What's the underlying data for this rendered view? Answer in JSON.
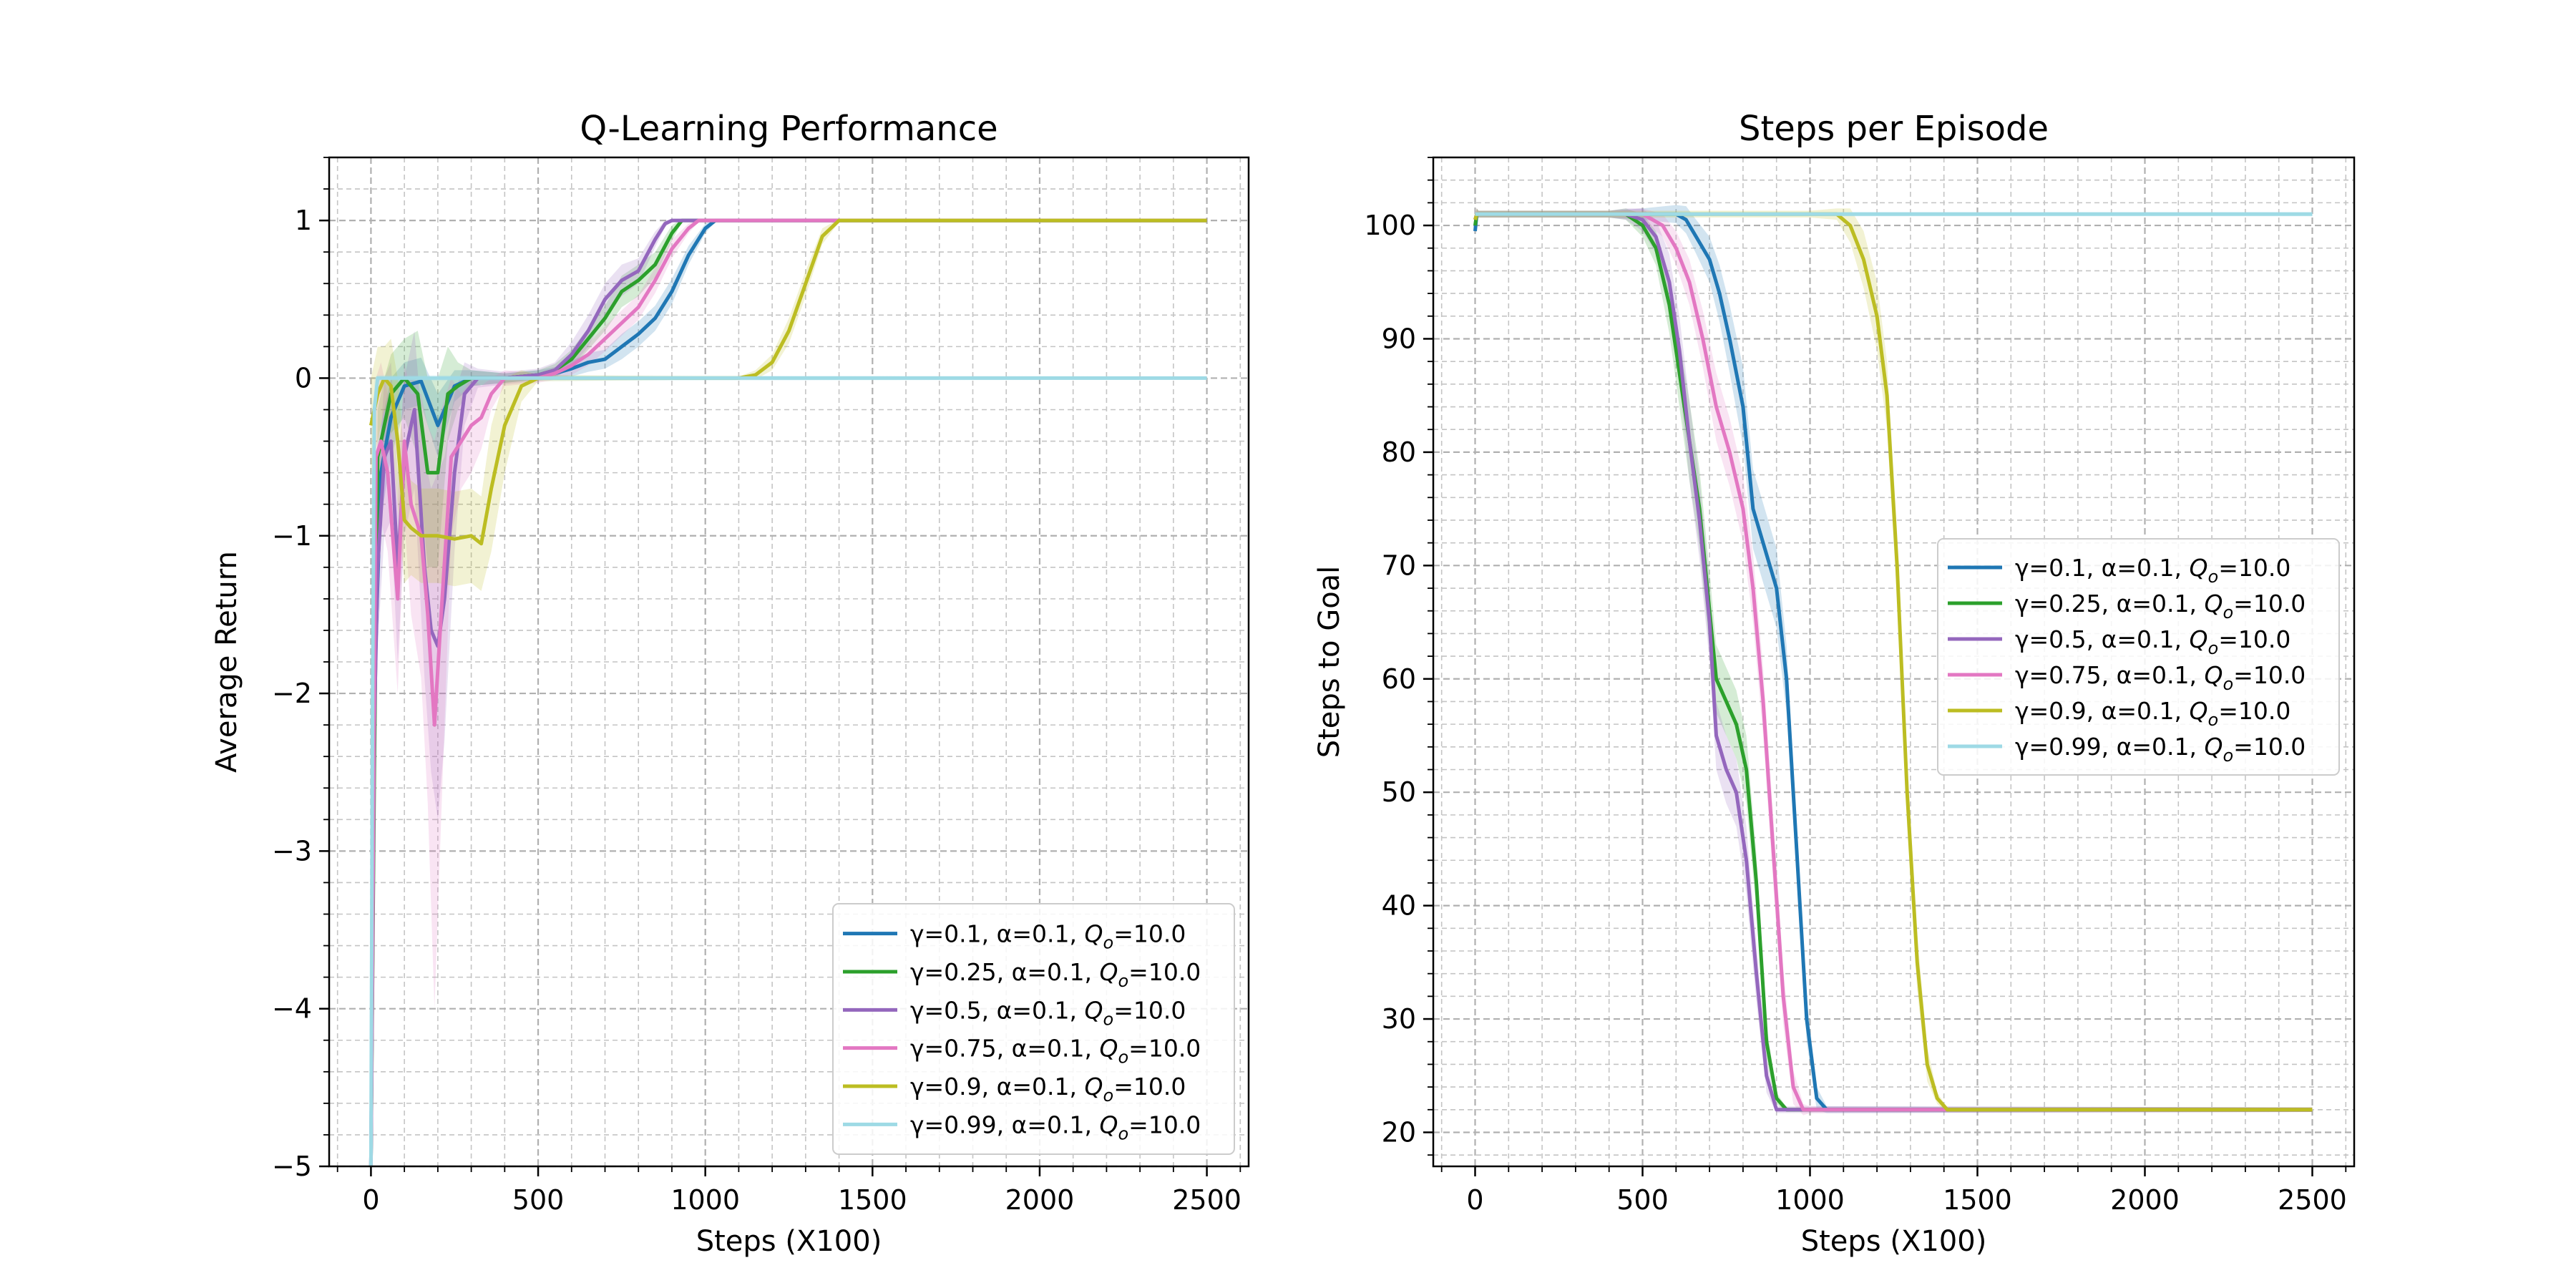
{
  "chart_data": [
    {
      "type": "line",
      "title": "Q-Learning Performance",
      "xlabel": "Steps (X100)",
      "ylabel": "Average Return",
      "xlim": [
        -125,
        2625
      ],
      "ylim": [
        -5,
        1.4
      ],
      "xticks": [
        0,
        500,
        1000,
        1500,
        2000,
        2500
      ],
      "xtick_labels": [
        "0",
        "500",
        "1000",
        "1500",
        "2000",
        "2500"
      ],
      "yticks": [
        -5,
        -4,
        -3,
        -2,
        -1,
        0,
        1
      ],
      "ytick_labels": [
        "−5",
        "−4",
        "−3",
        "−2",
        "−1",
        "0",
        "1"
      ],
      "grid": true,
      "legend_position": "lower-right",
      "series": [
        {
          "name": "γ=0.1, α=0.1, Q_o=10.0",
          "label_prefix": "γ=0.1, α=0.1, ",
          "label_q": "Q",
          "label_sub": "o",
          "label_suffix": "=10.0",
          "color": "#1f77b4",
          "x": [
            0,
            10,
            30,
            60,
            100,
            150,
            200,
            250,
            300,
            400,
            500,
            550,
            600,
            650,
            700,
            750,
            800,
            850,
            900,
            950,
            1000,
            1030,
            2500
          ],
          "y": [
            -5,
            -2,
            -0.6,
            -0.25,
            -0.05,
            -0.02,
            -0.3,
            -0.05,
            0,
            0,
            0.02,
            0.03,
            0.06,
            0.1,
            0.12,
            0.2,
            0.28,
            0.38,
            0.55,
            0.78,
            0.95,
            1,
            1
          ],
          "band": [
            0.15,
            0.15,
            0.3,
            0.25,
            0.15,
            0.15,
            0.2,
            0.1,
            0.05,
            0.03,
            0.03,
            0.04,
            0.05,
            0.06,
            0.06,
            0.08,
            0.08,
            0.08,
            0.08,
            0.06,
            0.03,
            0.01,
            0.01
          ]
        },
        {
          "name": "γ=0.25, α=0.1, Q_o=10.0",
          "label_prefix": "γ=0.25, α=0.1, ",
          "label_q": "Q",
          "label_sub": "o",
          "label_suffix": "=10.0",
          "color": "#2ca02c",
          "x": [
            0,
            10,
            20,
            40,
            60,
            100,
            140,
            170,
            200,
            230,
            260,
            300,
            400,
            500,
            550,
            600,
            650,
            700,
            750,
            800,
            850,
            900,
            930,
            2500
          ],
          "y": [
            -5,
            -2.5,
            -0.5,
            -0.3,
            -0.1,
            0,
            -0.1,
            -0.6,
            -0.6,
            -0.1,
            -0.05,
            0,
            0,
            0.02,
            0.05,
            0.12,
            0.25,
            0.38,
            0.55,
            0.62,
            0.72,
            0.92,
            1,
            1
          ],
          "band": [
            0.2,
            0.3,
            0.3,
            0.3,
            0.25,
            0.25,
            0.4,
            0.6,
            0.6,
            0.3,
            0.15,
            0.05,
            0.03,
            0.03,
            0.04,
            0.06,
            0.07,
            0.08,
            0.1,
            0.1,
            0.08,
            0.05,
            0.01,
            0.01
          ]
        },
        {
          "name": "γ=0.5, α=0.1, Q_o=10.0",
          "label_prefix": "γ=0.5, α=0.1, ",
          "label_q": "Q",
          "label_sub": "o",
          "label_suffix": "=10.0",
          "color": "#9467bd",
          "x": [
            0,
            10,
            20,
            40,
            60,
            80,
            100,
            130,
            160,
            180,
            200,
            220,
            250,
            280,
            320,
            400,
            500,
            550,
            600,
            650,
            700,
            750,
            800,
            850,
            880,
            900,
            2500
          ],
          "y": [
            -5,
            -2.2,
            -1.2,
            -0.5,
            -0.4,
            -1.2,
            -0.5,
            -0.2,
            -1.2,
            -1.6,
            -1.7,
            -1.4,
            -0.6,
            -0.1,
            0,
            0,
            0.02,
            0.05,
            0.15,
            0.3,
            0.5,
            0.62,
            0.68,
            0.88,
            0.98,
            1,
            1
          ],
          "band": [
            0.3,
            0.4,
            0.5,
            0.5,
            0.5,
            0.6,
            0.5,
            0.5,
            0.7,
            0.9,
            1.1,
            0.9,
            0.5,
            0.2,
            0.06,
            0.04,
            0.04,
            0.05,
            0.08,
            0.1,
            0.1,
            0.1,
            0.08,
            0.05,
            0.02,
            0.01,
            0.01
          ]
        },
        {
          "name": "γ=0.75, α=0.1, Q_o=10.0",
          "label_prefix": "γ=0.75, α=0.1, ",
          "label_q": "Q",
          "label_sub": "o",
          "label_suffix": "=10.0",
          "color": "#e377c2",
          "x": [
            0,
            15,
            30,
            50,
            80,
            100,
            120,
            150,
            170,
            190,
            210,
            240,
            270,
            300,
            330,
            360,
            400,
            500,
            550,
            600,
            650,
            700,
            750,
            800,
            850,
            900,
            950,
            980,
            2500
          ],
          "y": [
            -5,
            -0.5,
            -0.4,
            -0.6,
            -1.4,
            -0.4,
            -0.8,
            -1.0,
            -1.5,
            -2.2,
            -1.5,
            -0.5,
            -0.4,
            -0.3,
            -0.25,
            -0.1,
            0,
            0,
            0.03,
            0.08,
            0.15,
            0.25,
            0.35,
            0.45,
            0.62,
            0.82,
            0.95,
            1,
            1
          ],
          "band": [
            0.3,
            0.5,
            0.5,
            0.5,
            0.6,
            0.5,
            0.7,
            0.9,
            1.2,
            1.8,
            1.3,
            0.5,
            0.3,
            0.3,
            0.2,
            0.1,
            0.05,
            0.03,
            0.04,
            0.06,
            0.07,
            0.08,
            0.08,
            0.08,
            0.08,
            0.06,
            0.03,
            0.01,
            0.01
          ]
        },
        {
          "name": "γ=0.9, α=0.1, Q_o=10.0",
          "label_prefix": "γ=0.9, α=0.1, ",
          "label_q": "Q",
          "label_sub": "o",
          "label_suffix": "=10.0",
          "color": "#bcbd22",
          "x": [
            0,
            20,
            40,
            60,
            80,
            100,
            120,
            150,
            200,
            250,
            300,
            330,
            360,
            400,
            450,
            500,
            1000,
            1100,
            1150,
            1200,
            1250,
            1300,
            1350,
            1400,
            2500
          ],
          "y": [
            -0.3,
            -0.1,
            0,
            -0.05,
            -0.4,
            -0.9,
            -0.95,
            -1.0,
            -1.0,
            -1.02,
            -1.0,
            -1.05,
            -0.7,
            -0.3,
            -0.05,
            0,
            0,
            0,
            0.02,
            0.1,
            0.3,
            0.6,
            0.9,
            1,
            1
          ],
          "band": [
            0.3,
            0.3,
            0.2,
            0.3,
            0.4,
            0.4,
            0.3,
            0.3,
            0.3,
            0.3,
            0.3,
            0.3,
            0.4,
            0.3,
            0.1,
            0.02,
            0.01,
            0.01,
            0.03,
            0.05,
            0.08,
            0.08,
            0.05,
            0.01,
            0.01
          ]
        },
        {
          "name": "γ=0.99, α=0.1, Q_o=10.0",
          "label_prefix": "γ=0.99, α=0.1, ",
          "label_q": "Q",
          "label_sub": "o",
          "label_suffix": "=10.0",
          "color": "#9edae5",
          "x": [
            0,
            5,
            10,
            20,
            2500
          ],
          "y": [
            -5,
            -2,
            -0.2,
            0,
            0
          ],
          "band": [
            0.1,
            0.2,
            0.2,
            0.02,
            0.01
          ]
        }
      ]
    },
    {
      "type": "line",
      "title": "Steps per Episode",
      "xlabel": "Steps (X100)",
      "ylabel": "Steps to Goal",
      "xlim": [
        -125,
        2625
      ],
      "ylim": [
        17,
        106
      ],
      "xticks": [
        0,
        500,
        1000,
        1500,
        2000,
        2500
      ],
      "xtick_labels": [
        "0",
        "500",
        "1000",
        "1500",
        "2000",
        "2500"
      ],
      "yticks": [
        20,
        30,
        40,
        50,
        60,
        70,
        80,
        90,
        100
      ],
      "ytick_labels": [
        "20",
        "30",
        "40",
        "50",
        "60",
        "70",
        "80",
        "90",
        "100"
      ],
      "grid": true,
      "legend_position": "center-right",
      "series": [
        {
          "name": "γ=0.1, α=0.1, Q_o=10.0",
          "label_prefix": "γ=0.1, α=0.1, ",
          "label_q": "Q",
          "label_sub": "o",
          "label_suffix": "=10.0",
          "color": "#1f77b4",
          "x": [
            0,
            5,
            10,
            400,
            500,
            600,
            630,
            660,
            700,
            730,
            760,
            800,
            830,
            860,
            900,
            930,
            960,
            990,
            1020,
            1050,
            2500
          ],
          "y": [
            99.5,
            101,
            101,
            101,
            101,
            101,
            100.5,
            99,
            97,
            94,
            90,
            84,
            75,
            72,
            68,
            60,
            45,
            30,
            23,
            22,
            22
          ],
          "band": [
            0.5,
            0.5,
            0.3,
            0.3,
            0.5,
            0.8,
            1.2,
            1.5,
            2,
            2.5,
            3,
            3.5,
            3.5,
            3.5,
            3.5,
            3,
            2.5,
            2,
            1,
            0.3,
            0.2
          ]
        },
        {
          "name": "γ=0.25, α=0.1, Q_o=10.0",
          "label_prefix": "γ=0.25, α=0.1, ",
          "label_q": "Q",
          "label_sub": "o",
          "label_suffix": "=10.0",
          "color": "#2ca02c",
          "x": [
            0,
            5,
            10,
            400,
            450,
            500,
            540,
            580,
            610,
            640,
            670,
            700,
            720,
            750,
            780,
            810,
            840,
            870,
            900,
            930,
            2500
          ],
          "y": [
            100,
            101,
            101,
            101,
            101,
            100,
            98,
            93,
            87,
            81,
            75,
            66,
            60,
            58,
            56,
            52,
            42,
            28,
            23,
            22,
            22
          ],
          "band": [
            0.5,
            0.5,
            0.3,
            0.3,
            0.5,
            1,
            1.5,
            2.5,
            3,
            3.5,
            3.5,
            3.5,
            3,
            3,
            3,
            3,
            2.5,
            1.5,
            0.5,
            0.2,
            0.2
          ]
        },
        {
          "name": "γ=0.5, α=0.1, Q_o=10.0",
          "label_prefix": "γ=0.5, α=0.1, ",
          "label_q": "Q",
          "label_sub": "o",
          "label_suffix": "=10.0",
          "color": "#9467bd",
          "x": [
            0,
            5,
            10,
            400,
            450,
            500,
            540,
            580,
            610,
            640,
            670,
            700,
            720,
            750,
            780,
            810,
            840,
            870,
            900,
            2500
          ],
          "y": [
            100.5,
            101,
            101,
            101,
            101,
            100.5,
            99,
            95,
            89,
            81,
            74,
            65,
            55,
            52,
            50,
            44,
            34,
            25,
            22,
            22
          ],
          "band": [
            0.5,
            0.5,
            0.3,
            0.3,
            0.5,
            1,
            1.5,
            2.5,
            3,
            3.5,
            3.5,
            3.5,
            3,
            3,
            3,
            3,
            2.5,
            1.5,
            0.3,
            0.2
          ]
        },
        {
          "name": "γ=0.75, α=0.1, Q_o=10.0",
          "label_prefix": "γ=0.75, α=0.1, ",
          "label_q": "Q",
          "label_sub": "o",
          "label_suffix": "=10.0",
          "color": "#e377c2",
          "x": [
            0,
            5,
            10,
            400,
            500,
            560,
            600,
            640,
            680,
            720,
            760,
            800,
            830,
            860,
            890,
            920,
            950,
            980,
            1000,
            2500
          ],
          "y": [
            100.5,
            101,
            101,
            101,
            101,
            100,
            98,
            95,
            90,
            84,
            80,
            75,
            68,
            58,
            45,
            32,
            24,
            22,
            22,
            22
          ],
          "band": [
            0.5,
            0.5,
            0.3,
            0.3,
            0.5,
            1,
            1.5,
            2,
            2.5,
            3,
            3,
            3,
            3,
            3,
            3,
            2.5,
            1.5,
            0.5,
            0.3,
            0.2
          ]
        },
        {
          "name": "γ=0.9, α=0.1, Q_o=10.0",
          "label_prefix": "γ=0.9, α=0.1, ",
          "label_q": "Q",
          "label_sub": "o",
          "label_suffix": "=10.0",
          "color": "#bcbd22",
          "x": [
            0,
            5,
            10,
            1000,
            1080,
            1120,
            1160,
            1200,
            1230,
            1260,
            1290,
            1320,
            1350,
            1380,
            1410,
            2500
          ],
          "y": [
            100.5,
            101,
            101,
            101,
            101,
            100,
            97,
            92,
            85,
            70,
            50,
            35,
            26,
            23,
            22,
            22
          ],
          "band": [
            0.5,
            0.5,
            0.3,
            0.3,
            0.5,
            1.5,
            2.5,
            3,
            3,
            3,
            3,
            2.5,
            1.5,
            0.5,
            0.2,
            0.2
          ]
        },
        {
          "name": "γ=0.99, α=0.1, Q_o=10.0",
          "label_prefix": "γ=0.99, α=0.1, ",
          "label_q": "Q",
          "label_sub": "o",
          "label_suffix": "=10.0",
          "color": "#9edae5",
          "x": [
            0,
            2500
          ],
          "y": [
            101,
            101
          ],
          "band": [
            0.2,
            0.2
          ]
        }
      ]
    }
  ]
}
